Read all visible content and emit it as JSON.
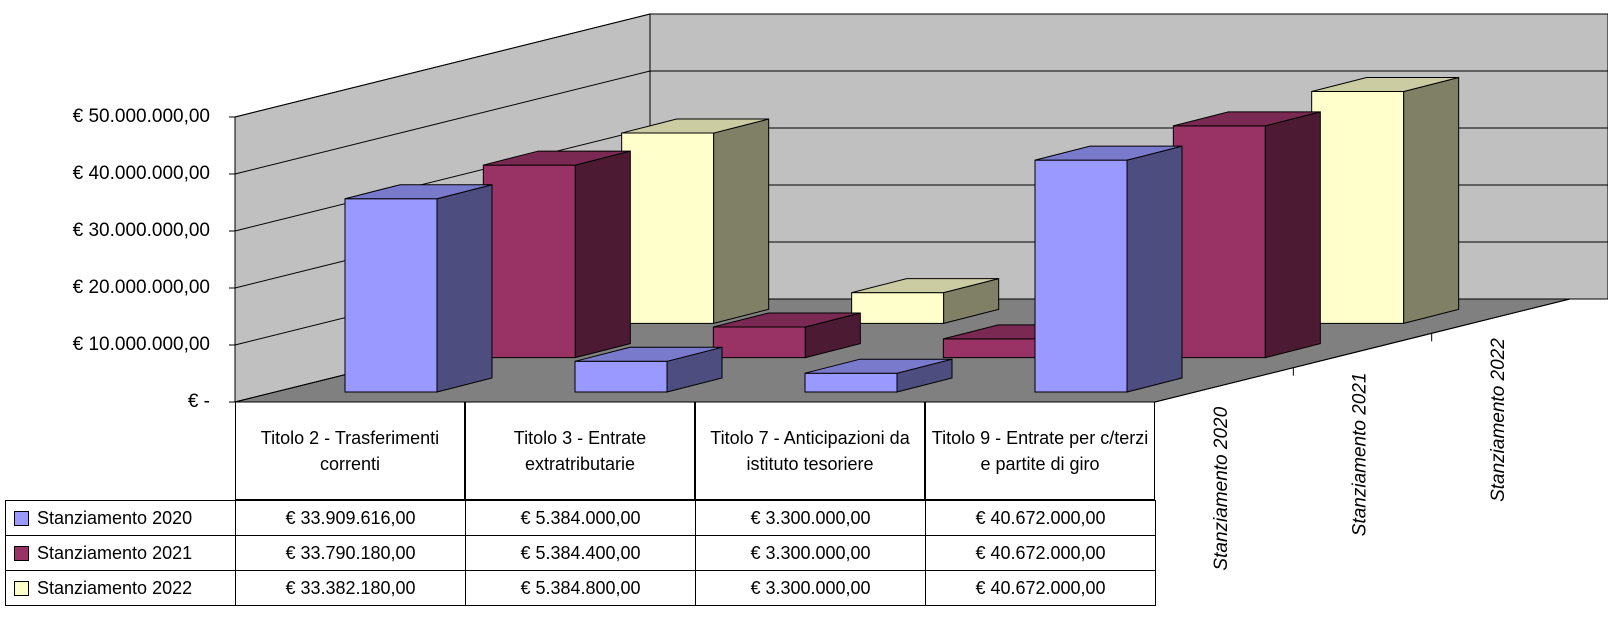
{
  "chart_data": {
    "type": "bar3d",
    "categories": [
      "Titolo 2 - Trasferimenti correnti",
      "Titolo 3 - Entrate extratributarie",
      "Titolo 7 - Anticipazioni da istituto tesoriere",
      "Titolo 9 - Entrate per c/terzi e partite di giro"
    ],
    "series": [
      {
        "name": "Stanziamento 2020",
        "color": "#9999ff",
        "values": [
          33909616,
          5384000,
          3300000,
          40672000
        ],
        "value_labels": [
          "€ 33.909.616,00",
          "€ 5.384.000,00",
          "€ 3.300.000,00",
          "€ 40.672.000,00"
        ]
      },
      {
        "name": "Stanziamento 2021",
        "color": "#993366",
        "values": [
          33790180,
          5384400,
          3300000,
          40672000
        ],
        "value_labels": [
          "€ 33.790.180,00",
          "€ 5.384.400,00",
          "€ 3.300.000,00",
          "€ 40.672.000,00"
        ]
      },
      {
        "name": "Stanziamento 2022",
        "color": "#ffffcc",
        "values": [
          33382180,
          5384800,
          3300000,
          40672000
        ],
        "value_labels": [
          "€ 33.382.180,00",
          "€ 5.384.800,00",
          "€ 3.300.000,00",
          "€ 40.672.000,00"
        ]
      }
    ],
    "ylim": [
      0,
      50000000
    ],
    "yticks": [
      {
        "value": 0,
        "label": "€ -"
      },
      {
        "value": 10000000,
        "label": "€ 10.000.000,00"
      },
      {
        "value": 20000000,
        "label": "€ 20.000.000,00"
      },
      {
        "value": 30000000,
        "label": "€ 30.000.000,00"
      },
      {
        "value": 40000000,
        "label": "€ 40.000.000,00"
      },
      {
        "value": 50000000,
        "label": "€ 50.000.000,00"
      }
    ],
    "grid": true
  }
}
